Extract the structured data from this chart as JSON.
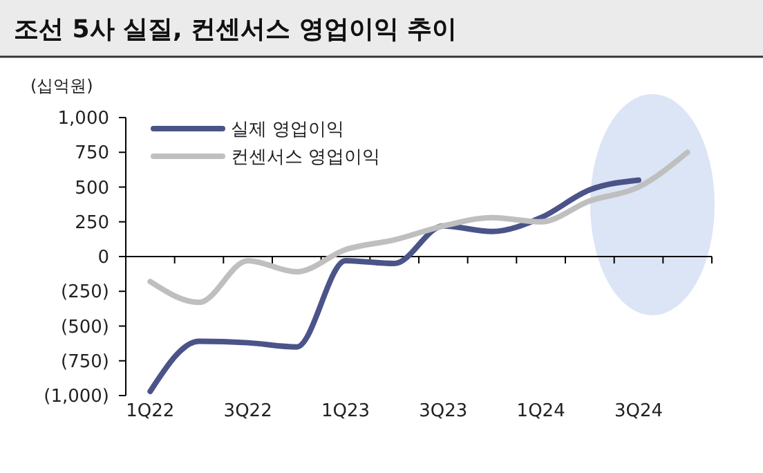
{
  "chart_data": {
    "type": "line",
    "title": "조선 5사 실질, 컨센서스 영업이익 추이",
    "ylabel": "(십억원)",
    "categories": [
      "1Q22",
      null,
      "3Q22",
      null,
      "1Q23",
      null,
      "3Q23",
      null,
      "1Q24",
      null,
      "3Q24",
      null
    ],
    "series": [
      {
        "name": "실제 영업이익",
        "color": "#4a5488",
        "values": [
          -970,
          -610,
          -620,
          -650,
          -30,
          -50,
          220,
          180,
          280,
          480,
          550,
          null
        ]
      },
      {
        "name": "컨센서스 영업이익",
        "color": "#bfbfbf",
        "values": [
          -180,
          -330,
          -30,
          -110,
          50,
          120,
          220,
          280,
          250,
          400,
          500,
          750
        ]
      }
    ],
    "ylim": [
      -1000,
      1000
    ],
    "yticks": [
      {
        "value": -1000,
        "label": "(1,000)"
      },
      {
        "value": -750,
        "label": "(750)"
      },
      {
        "value": -500,
        "label": "(500)"
      },
      {
        "value": -250,
        "label": "(250)"
      },
      0,
      250,
      500,
      750,
      {
        "value": 1000,
        "label": "1,000"
      }
    ],
    "legend": "top left",
    "marker": "none",
    "line_style": "solid"
  }
}
